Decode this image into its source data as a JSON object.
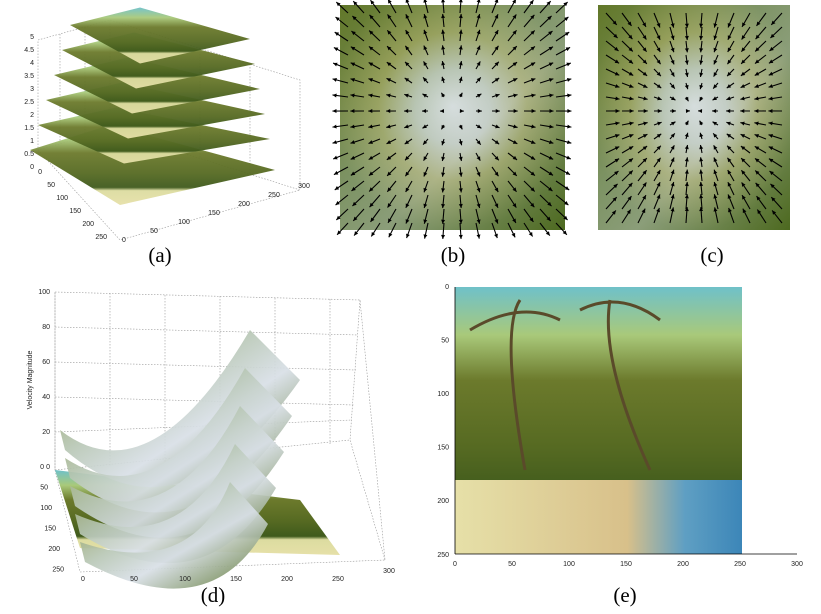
{
  "panels": {
    "a": {
      "caption": "(a)",
      "z_ticks": [
        "5",
        "4.5",
        "4",
        "3.5",
        "3",
        "2.5",
        "2",
        "1.5",
        "1",
        "0.5",
        "0"
      ],
      "y_ticks": [
        "0",
        "50",
        "100",
        "150",
        "200",
        "250"
      ],
      "x_ticks": [
        "0",
        "50",
        "100",
        "150",
        "200",
        "250",
        "300"
      ]
    },
    "b": {
      "caption": "(b)"
    },
    "c": {
      "caption": "(c)"
    },
    "d": {
      "caption": "(d)",
      "z_label": "Velocity Magnitude",
      "z_ticks": [
        "100",
        "80",
        "60",
        "40",
        "20",
        "0"
      ],
      "y_ticks": [
        "0",
        "50",
        "100",
        "150",
        "200",
        "250"
      ],
      "x_ticks": [
        "0",
        "50",
        "100",
        "150",
        "200",
        "250",
        "300"
      ]
    },
    "e": {
      "caption": "(e)",
      "y_ticks": [
        "0",
        "50",
        "100",
        "150",
        "200",
        "250"
      ],
      "x_ticks": [
        "0",
        "50",
        "100",
        "150",
        "200",
        "250",
        "300"
      ]
    }
  }
}
